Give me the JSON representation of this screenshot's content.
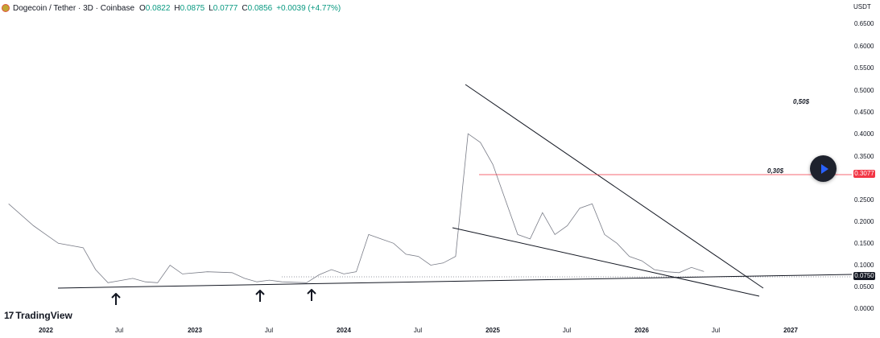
{
  "header": {
    "symbol": "Dogecoin / Tether · 3D · Coinbase",
    "ohlc": [
      {
        "key": "O",
        "value": "0.0822"
      },
      {
        "key": "H",
        "value": "0.0875"
      },
      {
        "key": "L",
        "value": "0.0777"
      },
      {
        "key": "C",
        "value": "0.0856"
      }
    ],
    "change": "+0.0039 (+4.77%)",
    "up_color": "#089981"
  },
  "price_axis": {
    "unit": "USDT",
    "ticks": [
      "0.6500",
      "0.6000",
      "0.5500",
      "0.5000",
      "0.4500",
      "0.4000",
      "0.3500",
      "0.2500",
      "0.2000",
      "0.1500",
      "0.1000",
      "0.0500",
      "0.0000"
    ],
    "red_badge": "0.3077",
    "black_badge": "0.0750"
  },
  "time_axis": {
    "ticks": [
      {
        "label": "2022",
        "year": true
      },
      {
        "label": "Jul",
        "year": false
      },
      {
        "label": "2023",
        "year": true
      },
      {
        "label": "Jul",
        "year": false
      },
      {
        "label": "2024",
        "year": true
      },
      {
        "label": "Jul",
        "year": false
      },
      {
        "label": "2025",
        "year": true
      },
      {
        "label": "Jul",
        "year": false
      },
      {
        "label": "2026",
        "year": true
      },
      {
        "label": "Jul",
        "year": false
      },
      {
        "label": "2027",
        "year": true
      }
    ]
  },
  "annotations": {
    "level_high": "0,50$",
    "level_mid": "0,30$"
  },
  "branding": {
    "name": "TradingView",
    "mark": "17"
  },
  "colors": {
    "candles": "#787b86",
    "trendlines": "#131722",
    "resistance_line": "#f23645",
    "play_button": "#1e222d",
    "play_icon": "#2962ff"
  },
  "chart_data": {
    "type": "line",
    "symbol": "DOGEUSDT",
    "interval": "3D",
    "x": [
      "2021-10",
      "2021-12",
      "2022-01",
      "2022-02",
      "2022-04",
      "2022-05",
      "2022-06",
      "2022-07",
      "2022-08",
      "2022-09",
      "2022-10",
      "2022-11",
      "2022-12",
      "2023-02",
      "2023-04",
      "2023-05",
      "2023-06",
      "2023-07",
      "2023-08",
      "2023-09",
      "2023-10",
      "2023-11",
      "2023-12",
      "2024-01",
      "2024-02",
      "2024-03",
      "2024-04",
      "2024-05",
      "2024-06",
      "2024-07",
      "2024-08",
      "2024-09",
      "2024-10",
      "2024-11",
      "2024-12",
      "2025-01",
      "2025-02",
      "2025-03",
      "2025-04",
      "2025-05",
      "2025-06",
      "2025-07",
      "2025-08",
      "2025-09",
      "2025-10",
      "2025-11",
      "2025-12",
      "2026-01",
      "2026-02",
      "2026-03",
      "2026-04",
      "2026-05",
      "2026-06"
    ],
    "series": [
      {
        "values": [
          0.24,
          0.19,
          0.17,
          0.15,
          0.14,
          0.09,
          0.06,
          0.065,
          0.07,
          0.062,
          0.06,
          0.1,
          0.08,
          0.085,
          0.083,
          0.07,
          0.062,
          0.066,
          0.062,
          0.061,
          0.06,
          0.078,
          0.09,
          0.08,
          0.085,
          0.17,
          0.16,
          0.15,
          0.125,
          0.12,
          0.1,
          0.105,
          0.12,
          0.4,
          0.38,
          0.33,
          0.25,
          0.17,
          0.16,
          0.22,
          0.17,
          0.19,
          0.23,
          0.24,
          0.17,
          0.15,
          0.12,
          0.11,
          0.09,
          0.085,
          0.083,
          0.095,
          0.0856
        ]
      }
    ],
    "ylim": [
      0,
      0.65
    ],
    "horizontal_levels": [
      0.3077,
      0.075
    ]
  }
}
